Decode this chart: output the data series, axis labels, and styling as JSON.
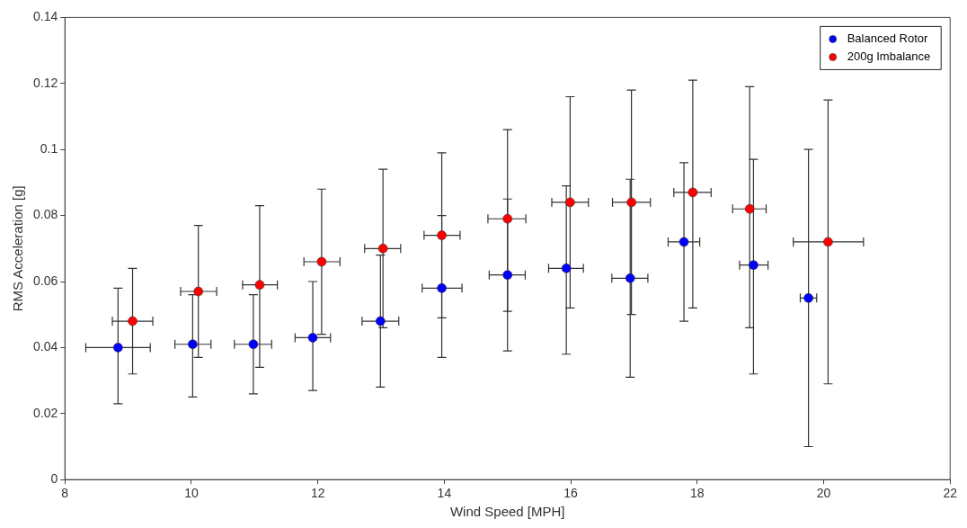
{
  "chart_data": {
    "type": "scatter",
    "xlabel": "Wind Speed [MPH]",
    "ylabel": "RMS Acceleration [g]",
    "xlim": [
      8,
      22
    ],
    "xticks": [
      8,
      10,
      12,
      14,
      16,
      18,
      20,
      22
    ],
    "ylim": [
      0,
      0.14
    ],
    "yticks": [
      0,
      0.02,
      0.04,
      0.06,
      0.08,
      0.1,
      0.12,
      0.14
    ],
    "grid": false,
    "legend": "top right",
    "marker": "circle",
    "series": [
      {
        "name": "Balanced Rotor",
        "color": "#0000ff",
        "x": [
          8.84,
          10.02,
          10.98,
          11.92,
          12.99,
          13.96,
          15.0,
          15.93,
          16.94,
          17.79,
          18.89,
          19.76
        ],
        "values": [
          0.04,
          0.041,
          0.041,
          0.043,
          0.048,
          0.058,
          0.062,
          0.064,
          0.061,
          0.072,
          0.065,
          0.055
        ],
        "errors": [
          [
            0.023,
            0.058
          ],
          [
            0.025,
            0.056
          ],
          [
            0.026,
            0.056
          ],
          [
            0.027,
            0.06
          ],
          [
            0.028,
            0.068
          ],
          [
            0.037,
            0.08
          ],
          [
            0.051,
            0.085
          ],
          [
            0.038,
            0.089
          ],
          [
            0.031,
            0.091
          ],
          [
            0.048,
            0.096
          ],
          [
            0.032,
            0.097
          ],
          [
            0.01,
            0.1
          ]
        ],
        "xerrors": [
          [
            8.33,
            9.35
          ],
          [
            9.74,
            10.31
          ],
          [
            10.68,
            11.27
          ],
          [
            11.64,
            12.2
          ],
          [
            12.7,
            13.28
          ],
          [
            13.65,
            14.28
          ],
          [
            14.71,
            15.28
          ],
          [
            15.65,
            16.2
          ],
          [
            16.65,
            17.22
          ],
          [
            17.54,
            18.04
          ],
          [
            18.67,
            19.12
          ],
          [
            19.63,
            19.89
          ]
        ]
      },
      {
        "name": "200g Imbalance",
        "color": "#ff0000",
        "x": [
          9.07,
          10.11,
          11.08,
          12.06,
          13.03,
          13.96,
          15.0,
          15.99,
          16.96,
          17.93,
          18.83,
          20.07
        ],
        "values": [
          0.048,
          0.057,
          0.059,
          0.066,
          0.07,
          0.074,
          0.079,
          0.084,
          0.084,
          0.087,
          0.082,
          0.072
        ],
        "errors": [
          [
            0.032,
            0.064
          ],
          [
            0.037,
            0.077
          ],
          [
            0.034,
            0.083
          ],
          [
            0.044,
            0.088
          ],
          [
            0.046,
            0.094
          ],
          [
            0.049,
            0.099
          ],
          [
            0.039,
            0.106
          ],
          [
            0.052,
            0.116
          ],
          [
            0.05,
            0.118
          ],
          [
            0.052,
            0.121
          ],
          [
            0.046,
            0.119
          ],
          [
            0.029,
            0.115
          ]
        ],
        "xerrors": [
          [
            8.75,
            9.39
          ],
          [
            9.83,
            10.4
          ],
          [
            10.81,
            11.36
          ],
          [
            11.78,
            12.35
          ],
          [
            12.74,
            13.31
          ],
          [
            13.68,
            14.25
          ],
          [
            14.69,
            15.29
          ],
          [
            15.7,
            16.28
          ],
          [
            16.66,
            17.26
          ],
          [
            17.63,
            18.22
          ],
          [
            18.56,
            19.09
          ],
          [
            19.52,
            20.63
          ]
        ]
      }
    ]
  }
}
